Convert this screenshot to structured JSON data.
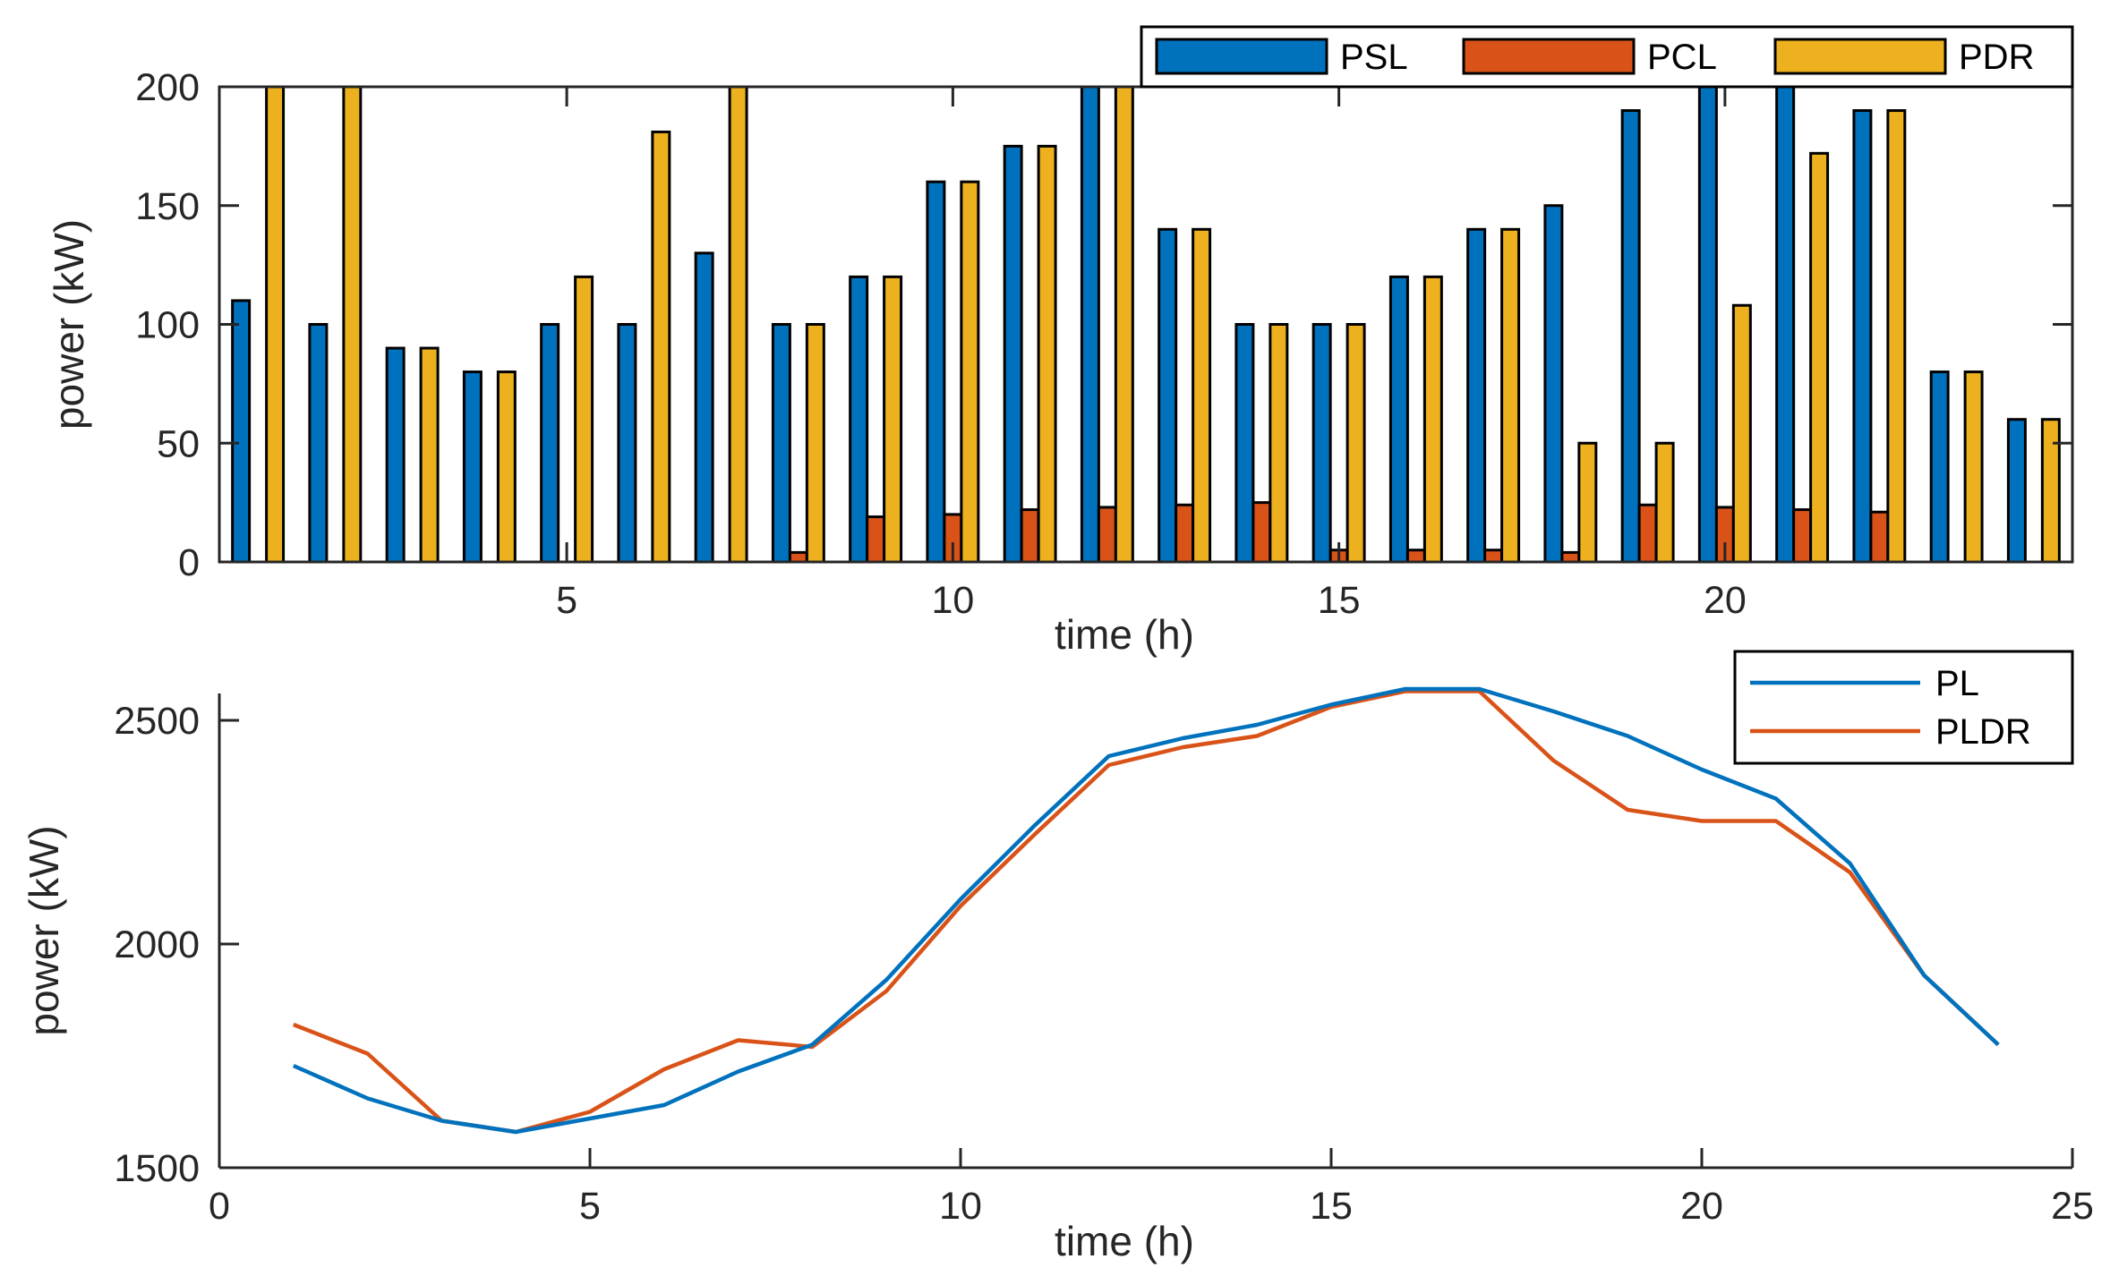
{
  "chart_data": [
    {
      "type": "bar",
      "xlabel": "time (h)",
      "ylabel": "power (kW)",
      "ylim": [
        0,
        200
      ],
      "yticks": [
        0,
        50,
        100,
        150,
        200
      ],
      "xlim": [
        0.5,
        24.5
      ],
      "xticks": [
        5,
        10,
        15,
        20
      ],
      "legend_position": "top-right",
      "categories": [
        1,
        2,
        3,
        4,
        5,
        6,
        7,
        8,
        9,
        10,
        11,
        12,
        13,
        14,
        15,
        16,
        17,
        18,
        19,
        20,
        21,
        22,
        23,
        24
      ],
      "series": [
        {
          "name": "PSL",
          "color": "#0072BD",
          "values": [
            110,
            100,
            90,
            80,
            100,
            100,
            130,
            100,
            120,
            160,
            175,
            200,
            140,
            100,
            100,
            120,
            140,
            150,
            190,
            200,
            200,
            190,
            80,
            60
          ]
        },
        {
          "name": "PCL",
          "color": "#D95319",
          "values": [
            0,
            0,
            0,
            0,
            0,
            0,
            0,
            4,
            19,
            20,
            22,
            23,
            24,
            25,
            5,
            5,
            5,
            4,
            24,
            23,
            22,
            21,
            0,
            0
          ]
        },
        {
          "name": "PDR",
          "color": "#EDB120",
          "values": [
            200,
            200,
            90,
            80,
            120,
            181,
            200,
            100,
            120,
            160,
            175,
            200,
            140,
            100,
            100,
            120,
            140,
            50,
            50,
            108,
            172,
            190,
            80,
            60
          ]
        }
      ]
    },
    {
      "type": "line",
      "xlabel": "time (h)",
      "ylabel": "power (kW)",
      "xlim": [
        0,
        25
      ],
      "xticks": [
        0,
        5,
        10,
        15,
        20,
        25
      ],
      "ylim": [
        1500,
        2560
      ],
      "yticks": [
        1500,
        2000,
        2500
      ],
      "legend_position": "top-right",
      "x": [
        1,
        2,
        3,
        4,
        5,
        6,
        7,
        8,
        9,
        10,
        11,
        12,
        13,
        14,
        15,
        16,
        17,
        18,
        19,
        20,
        21,
        22,
        23,
        24
      ],
      "series": [
        {
          "name": "PL",
          "color": "#0072BD",
          "values": [
            1728,
            1655,
            1605,
            1580,
            1610,
            1640,
            1715,
            1775,
            1920,
            2100,
            2265,
            2420,
            2460,
            2490,
            2535,
            2570,
            2570,
            2520,
            2465,
            2390,
            2325,
            2180,
            1930,
            1775
          ]
        },
        {
          "name": "PLDR",
          "color": "#D95319",
          "values": [
            1820,
            1755,
            1605,
            1580,
            1625,
            1720,
            1785,
            1770,
            1895,
            2085,
            2245,
            2400,
            2440,
            2465,
            2530,
            2565,
            2565,
            2410,
            2300,
            2275,
            2275,
            2160,
            1930,
            1775
          ]
        }
      ]
    }
  ]
}
